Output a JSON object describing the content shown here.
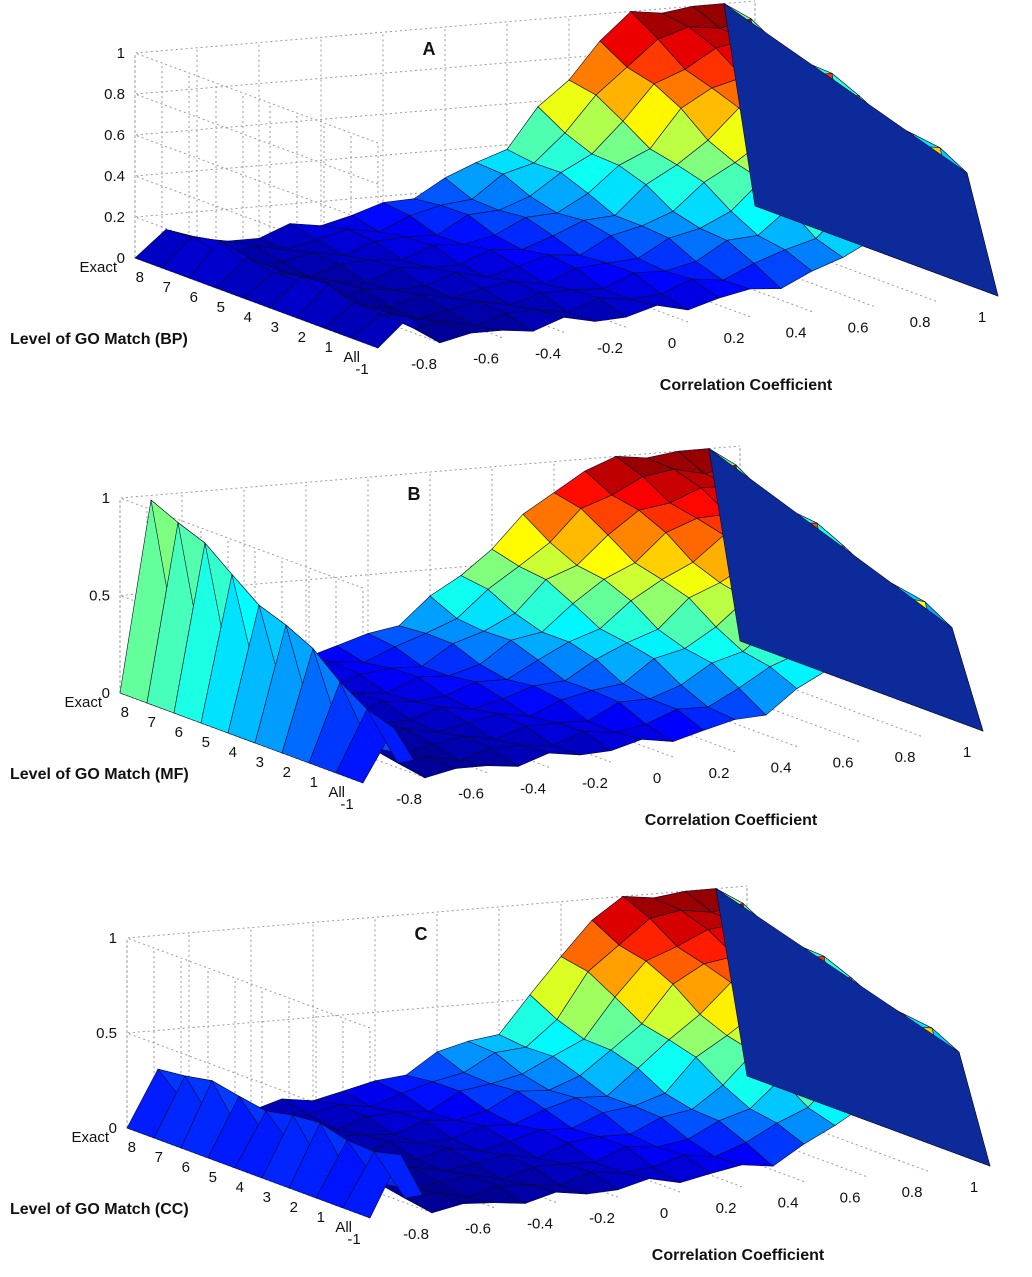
{
  "chart_data": [
    {
      "type": "surface",
      "panel_label": "A",
      "xlabel": "Correlation Coefficient",
      "ylabel": "Level of GO Match (BP)",
      "zlabel": "",
      "xlim": [
        -1,
        1
      ],
      "zlim": [
        0,
        1
      ],
      "x_ticks": [
        "-1",
        "-0.8",
        "-0.6",
        "-0.4",
        "-0.2",
        "0",
        "0.2",
        "0.4",
        "0.6",
        "0.8",
        "1"
      ],
      "y_ticks": [
        "All",
        "1",
        "2",
        "3",
        "4",
        "5",
        "6",
        "7",
        "8",
        "Exact"
      ],
      "z_ticks": [
        "0",
        "0.2",
        "0.4",
        "0.6",
        "0.8",
        "1"
      ],
      "grid": true,
      "colormap": "jet",
      "x": [
        -1,
        -0.9,
        -0.8,
        -0.7,
        -0.6,
        -0.5,
        -0.4,
        -0.3,
        -0.2,
        -0.1,
        0,
        0.1,
        0.2,
        0.3,
        0.4,
        0.5,
        0.6,
        0.7,
        0.8,
        0.9,
        1
      ],
      "z_all": [
        0,
        0.12,
        0.02,
        0.02,
        0.03,
        0.04,
        0.05,
        0.05,
        0.06,
        0.07,
        0.08,
        0.1,
        0.12,
        0.15,
        0.18,
        0.25,
        0.35,
        0.5,
        0.7,
        0.62,
        0
      ],
      "z_exact": [
        0,
        0.15,
        0.05,
        0.05,
        0.06,
        0.08,
        0.1,
        0.12,
        0.15,
        0.2,
        0.25,
        0.32,
        0.4,
        0.55,
        0.7,
        0.88,
        0.98,
        1,
        1,
        1,
        0
      ]
    },
    {
      "type": "surface",
      "panel_label": "B",
      "xlabel": "Correlation Coefficient",
      "ylabel": "Level of GO Match (MF)",
      "zlabel": "",
      "xlim": [
        -1,
        1
      ],
      "zlim": [
        0,
        1
      ],
      "x_ticks": [
        "-1",
        "-0.8",
        "-0.6",
        "-0.4",
        "-0.2",
        "0",
        "0.2",
        "0.4",
        "0.6",
        "0.8",
        "1"
      ],
      "y_ticks": [
        "All",
        "1",
        "2",
        "3",
        "4",
        "5",
        "6",
        "7",
        "8",
        "Exact"
      ],
      "z_ticks": [
        "0",
        "0.5",
        "1"
      ],
      "grid": true,
      "colormap": "jet",
      "x": [
        -1,
        -0.9,
        -0.8,
        -0.7,
        -0.6,
        -0.5,
        -0.4,
        -0.3,
        -0.2,
        -0.1,
        0,
        0.1,
        0.2,
        0.3,
        0.4,
        0.5,
        0.6,
        0.7,
        0.8,
        0.9,
        1
      ],
      "z_all": [
        0,
        0.25,
        0.02,
        0.02,
        0.03,
        0.04,
        0.05,
        0.06,
        0.07,
        0.08,
        0.1,
        0.12,
        0.15,
        0.2,
        0.28,
        0.38,
        0.5,
        0.6,
        0.65,
        0.55,
        0
      ],
      "z_exact": [
        0,
        1,
        0.05,
        0.06,
        0.08,
        0.1,
        0.12,
        0.15,
        0.18,
        0.25,
        0.35,
        0.45,
        0.6,
        0.72,
        0.85,
        0.95,
        1,
        1,
        1,
        1,
        0
      ]
    },
    {
      "type": "surface",
      "panel_label": "C",
      "xlabel": "Correlation Coefficient",
      "ylabel": "Level of GO Match (CC)",
      "zlabel": "",
      "xlim": [
        -1,
        1
      ],
      "zlim": [
        0,
        1
      ],
      "x_ticks": [
        "-1",
        "-0.8",
        "-0.6",
        "-0.4",
        "-0.2",
        "0",
        "0.2",
        "0.4",
        "0.6",
        "0.8",
        "1"
      ],
      "y_ticks": [
        "All",
        "1",
        "2",
        "3",
        "4",
        "5",
        "6",
        "7",
        "8",
        "Exact"
      ],
      "z_ticks": [
        "0",
        "0.5",
        "1"
      ],
      "grid": true,
      "colormap": "jet",
      "x": [
        -1,
        -0.9,
        -0.8,
        -0.7,
        -0.6,
        -0.5,
        -0.4,
        -0.3,
        -0.2,
        -0.1,
        0,
        0.1,
        0.2,
        0.3,
        0.4,
        0.5,
        0.6,
        0.7,
        0.8,
        0.9,
        1
      ],
      "z_all": [
        0,
        0.3,
        0.02,
        0.02,
        0.02,
        0.03,
        0.03,
        0.04,
        0.05,
        0.06,
        0.07,
        0.08,
        0.1,
        0.12,
        0.18,
        0.28,
        0.4,
        0.55,
        0.7,
        0.62,
        0
      ],
      "z_exact": [
        0,
        0.32,
        0.05,
        0.05,
        0.05,
        0.06,
        0.08,
        0.1,
        0.12,
        0.18,
        0.25,
        0.3,
        0.35,
        0.5,
        0.72,
        0.9,
        1,
        1,
        1,
        1,
        0
      ]
    }
  ]
}
